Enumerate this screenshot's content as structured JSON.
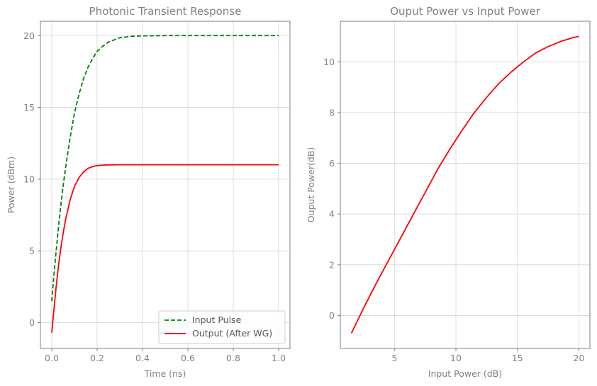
{
  "chart_data": [
    {
      "type": "line",
      "title": "Photonic Transient Response",
      "xlabel": "Time (ns)",
      "ylabel": "Power (dBm)",
      "xlim": [
        -0.05,
        1.05
      ],
      "ylim": [
        -1.8,
        21.0
      ],
      "xticks": [
        0.0,
        0.2,
        0.4,
        0.6,
        0.8,
        1.0
      ],
      "xtick_labels": [
        "0.0",
        "0.2",
        "0.4",
        "0.6",
        "0.8",
        "1.0"
      ],
      "yticks": [
        0,
        5,
        10,
        15,
        20
      ],
      "ytick_labels": [
        "0",
        "5",
        "10",
        "15",
        "20"
      ],
      "grid": true,
      "legend_position": "lower-right",
      "series": [
        {
          "name": "Input Pulse",
          "color": "#008000",
          "style": "dashed",
          "x": [
            0.0,
            0.01,
            0.02,
            0.03,
            0.04,
            0.05,
            0.06,
            0.08,
            0.1,
            0.12,
            0.14,
            0.16,
            0.18,
            0.2,
            0.22,
            0.25,
            0.3,
            0.35,
            0.4,
            0.5,
            0.6,
            0.7,
            0.8,
            0.9,
            1.0
          ],
          "y": [
            1.5,
            3.4,
            5.1,
            6.7,
            8.2,
            9.5,
            10.7,
            12.8,
            14.6,
            15.9,
            17.0,
            17.8,
            18.4,
            18.9,
            19.2,
            19.55,
            19.85,
            19.95,
            19.98,
            20.0,
            20.0,
            20.0,
            20.0,
            20.0,
            20.0
          ]
        },
        {
          "name": "Output (After WG)",
          "color": "#ff0000",
          "style": "solid",
          "x": [
            0.0,
            0.01,
            0.02,
            0.03,
            0.04,
            0.05,
            0.06,
            0.08,
            0.1,
            0.12,
            0.14,
            0.16,
            0.18,
            0.2,
            0.22,
            0.25,
            0.3,
            0.35,
            0.4,
            0.5,
            0.6,
            0.7,
            0.8,
            0.9,
            1.0
          ],
          "y": [
            -0.7,
            1.0,
            2.6,
            4.0,
            5.2,
            6.2,
            7.1,
            8.5,
            9.5,
            10.1,
            10.5,
            10.75,
            10.87,
            10.94,
            10.97,
            10.99,
            11.0,
            11.0,
            11.0,
            11.0,
            11.0,
            11.0,
            11.0,
            11.0,
            11.0
          ]
        }
      ]
    },
    {
      "type": "line",
      "title": "Ouput Power vs Input Power",
      "xlabel": "Input Power (dB)",
      "ylabel": "Ouput Power(dB)",
      "xlim": [
        0.6,
        20.9
      ],
      "ylim": [
        -1.3,
        11.6
      ],
      "xticks": [
        5,
        10,
        15,
        20
      ],
      "xtick_labels": [
        "5",
        "10",
        "15",
        "20"
      ],
      "yticks": [
        0,
        2,
        4,
        6,
        8,
        10
      ],
      "ytick_labels": [
        "0",
        "2",
        "4",
        "6",
        "8",
        "10"
      ],
      "grid": true,
      "series": [
        {
          "color": "#ff0000",
          "style": "solid",
          "x": [
            1.5,
            2.5,
            3.5,
            4.5,
            5.5,
            6.5,
            7.5,
            8.5,
            9.5,
            10.5,
            11.5,
            12.5,
            13.5,
            14.5,
            15.5,
            16.5,
            17.5,
            18.5,
            19.5,
            20.0
          ],
          "y": [
            -0.7,
            0.3,
            1.25,
            2.15,
            3.05,
            3.95,
            4.85,
            5.75,
            6.55,
            7.3,
            8.0,
            8.6,
            9.15,
            9.6,
            10.0,
            10.35,
            10.6,
            10.8,
            10.95,
            11.0
          ]
        }
      ]
    }
  ]
}
